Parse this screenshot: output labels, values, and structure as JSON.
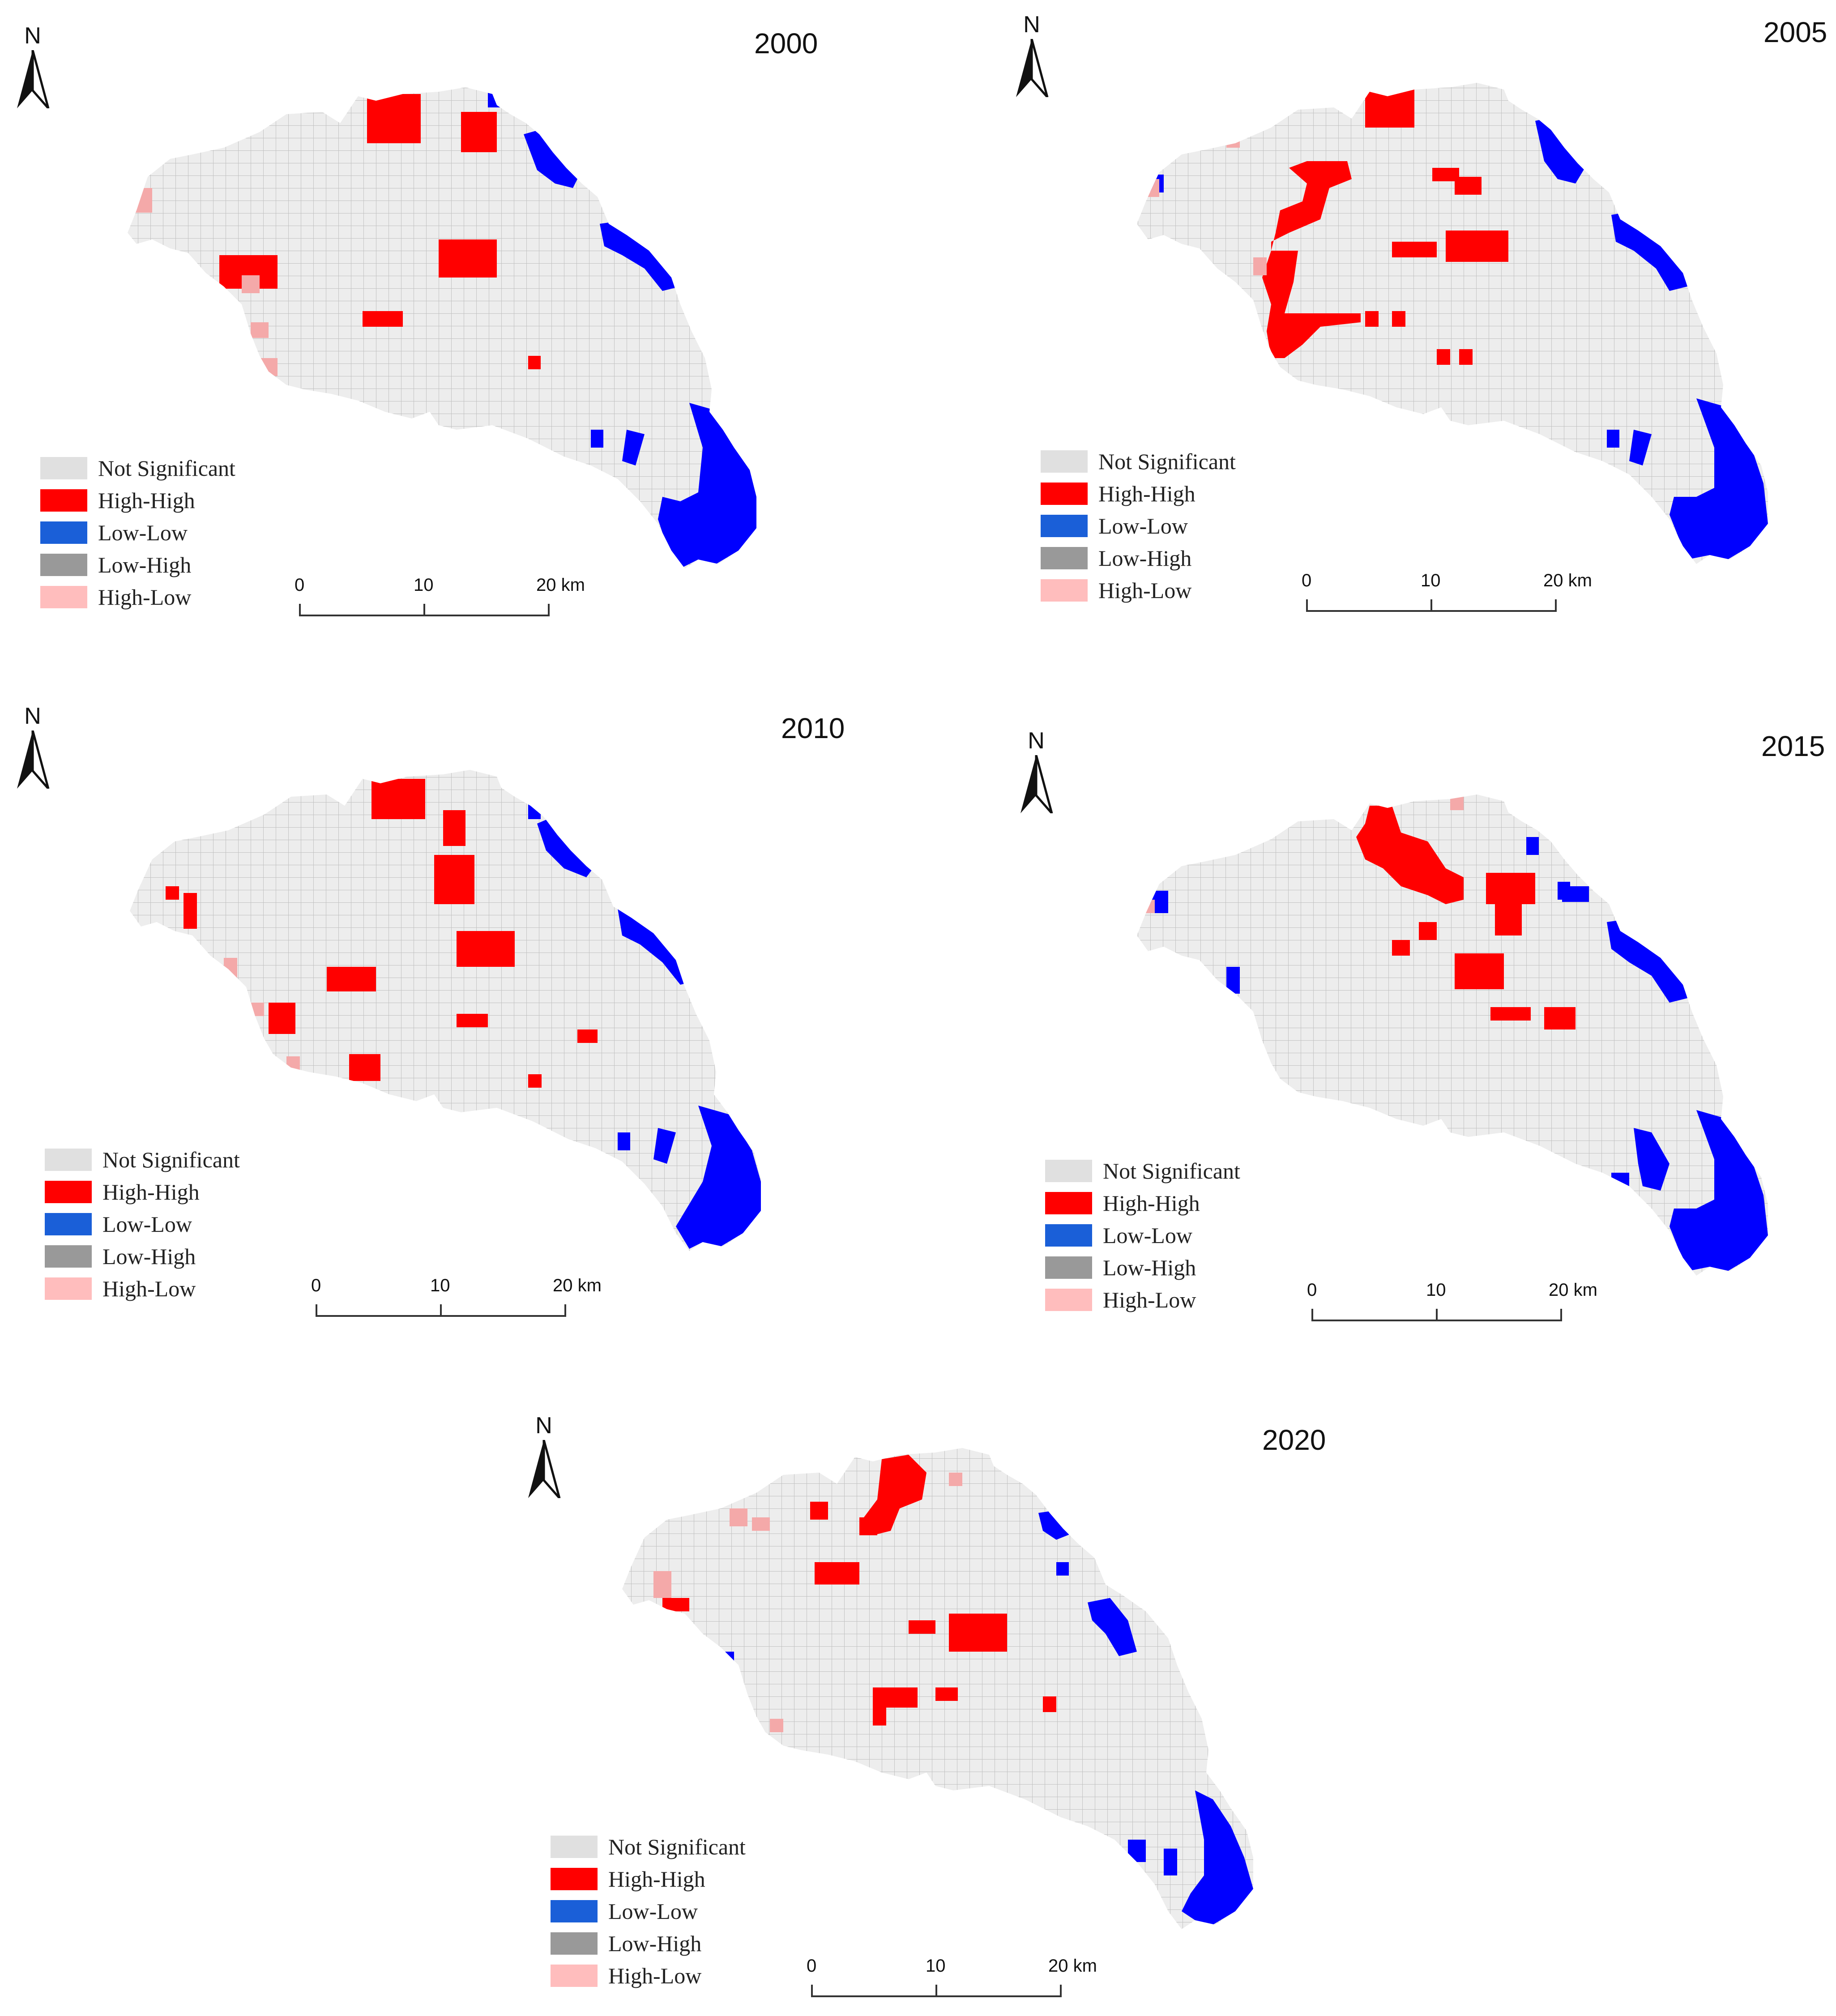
{
  "legend": [
    {
      "label": "Not Significant",
      "color": "#e0e0e0"
    },
    {
      "label": "High-High",
      "color": "#ff0000"
    },
    {
      "label": "Low-Low",
      "color": "#1a5fd8"
    },
    {
      "label": "Low-High",
      "color": "#999999"
    },
    {
      "label": "High-Low",
      "color": "#ffbdbd"
    }
  ],
  "north_label": "N",
  "scale_labels": [
    "0",
    "10",
    "20 km"
  ],
  "region_fill": "#ededed",
  "grid_line": "#c2c2c2",
  "low_low_fill": "#0000ff",
  "high_high_fill": "#ff0000",
  "high_low_fill": "#f4a9a9",
  "panels": [
    {
      "year": "2000"
    },
    {
      "year": "2005"
    },
    {
      "year": "2010"
    },
    {
      "year": "2015"
    },
    {
      "year": "2020"
    }
  ]
}
